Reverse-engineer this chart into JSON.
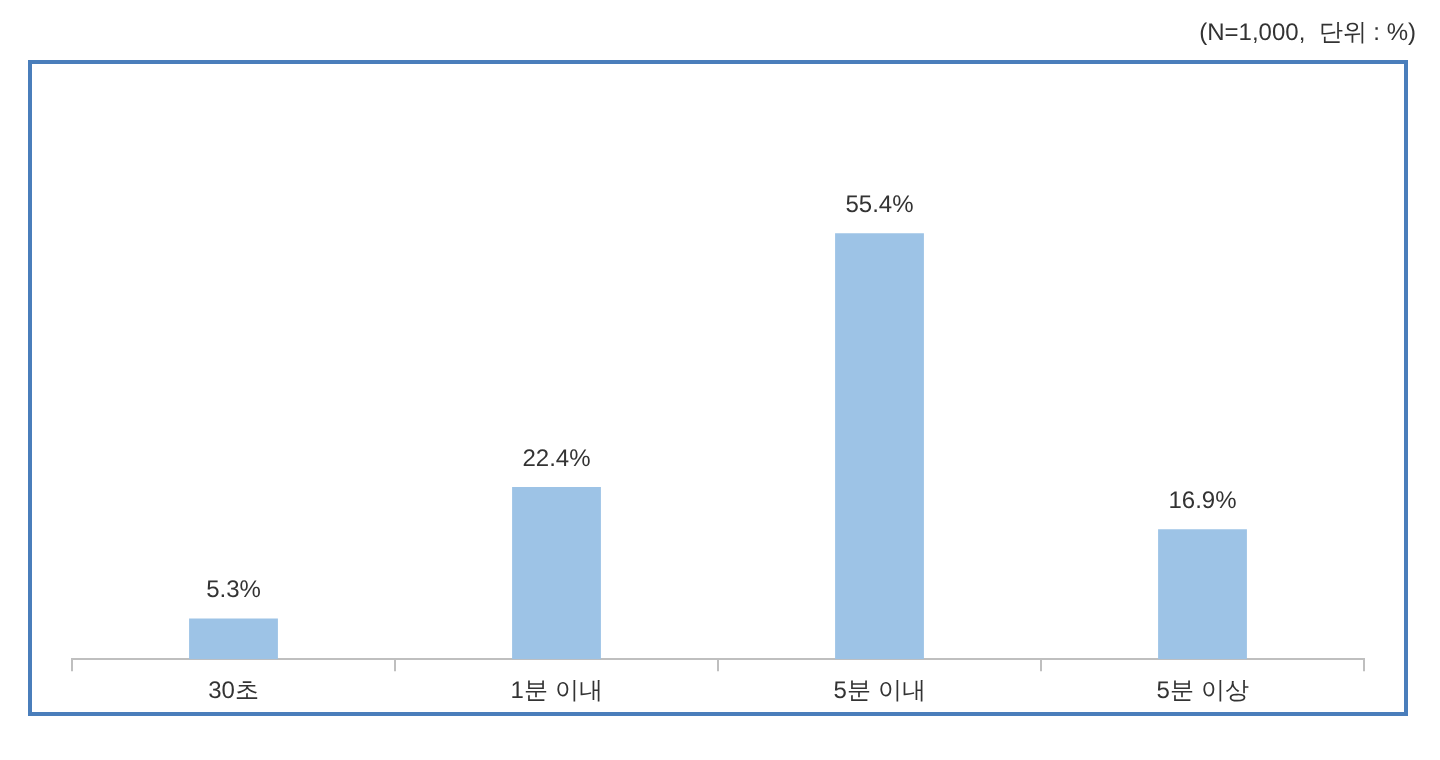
{
  "chart_data": {
    "type": "bar",
    "annotations": [
      "(N=1,000,  단위 : %)"
    ],
    "categories": [
      "30초",
      "1분 이내",
      "5분 이내",
      "5분 이상"
    ],
    "values": [
      5.3,
      22.4,
      55.4,
      16.9
    ],
    "value_labels": [
      "5.3%",
      "22.4%",
      "55.4%",
      "16.9%"
    ],
    "color": "#9dc3e6",
    "grid": false,
    "legend": false
  }
}
